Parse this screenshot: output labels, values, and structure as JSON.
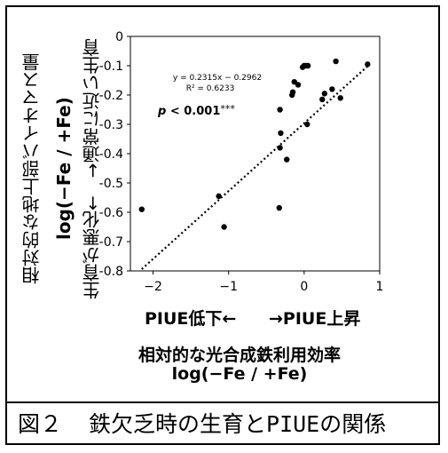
{
  "chart_data": {
    "type": "scatter",
    "x": [
      -2.15,
      -1.13,
      -1.06,
      -0.33,
      -0.32,
      -0.32,
      -0.31,
      -0.23,
      -0.16,
      -0.15,
      -0.13,
      -0.08,
      -0.02,
      0.0,
      0.03,
      0.04,
      0.05,
      0.24,
      0.27,
      0.37,
      0.42,
      0.48,
      0.84
    ],
    "y": [
      -0.59,
      -0.545,
      -0.65,
      -0.585,
      -0.38,
      -0.25,
      -0.33,
      -0.42,
      -0.2,
      -0.19,
      -0.155,
      -0.165,
      -0.105,
      -0.1,
      -0.1,
      -0.3,
      -0.1,
      -0.215,
      -0.195,
      -0.18,
      -0.085,
      -0.21,
      -0.095
    ],
    "trendline": {
      "slope": 0.2315,
      "intercept": -0.2962,
      "style": "dotted"
    },
    "xlim": [
      -2.3,
      1.0
    ],
    "ylim": [
      -0.8,
      0
    ],
    "xticks": [
      -2,
      -1,
      0,
      1
    ],
    "yticks": [
      0,
      -0.1,
      -0.2,
      -0.3,
      -0.4,
      -0.5,
      -0.6,
      -0.7,
      -0.8
    ],
    "xtick_labels": [
      "−2",
      "−1",
      "0",
      "1"
    ],
    "ytick_labels": [
      "0",
      "-0.1",
      "-0.2",
      "-0.3",
      "-0.4",
      "-0.5",
      "-0.6",
      "-0.7",
      "-0.8"
    ],
    "equation": "y = 0.2315x − 0.2962",
    "r_squared": "R² = 0.6233",
    "p_value_main": "p < 0.001",
    "p_value_stars": "***",
    "grid": false
  },
  "labels": {
    "y_title": "相対的な地上部バイオマス量",
    "y_formula": "log(−Fe / +Fe)",
    "y_direction": "生育が悪化←　→通常に近い生育",
    "x_low": "PIUE低下←",
    "x_high": "→PIUE上昇",
    "x_title": "相対的な光合成鉄利用効率",
    "x_formula": "log(−Fe / +Fe)"
  },
  "caption": {
    "figure_no": "図２",
    "text": "鉄欠乏時の生育とPIUEの関係"
  }
}
